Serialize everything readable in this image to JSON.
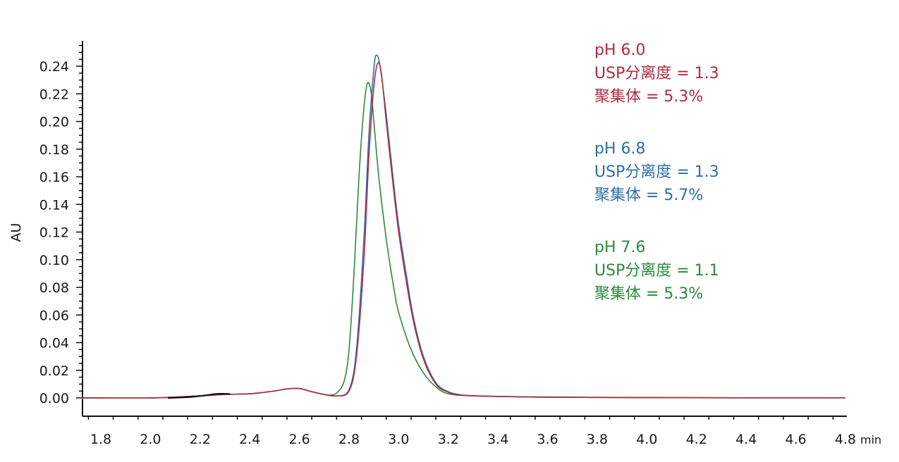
{
  "colors": {
    "ph60": "#b22a3e",
    "ph68": "#2e6fa3",
    "ph76": "#2d8a3e",
    "base": "#111111",
    "axis": "#111111"
  },
  "chart_data": {
    "type": "line",
    "ylabel": "AU",
    "xunit": "min",
    "xlim": [
      1.72,
      4.8
    ],
    "ylim": [
      -0.012,
      0.26
    ],
    "xticks": [
      "1.8",
      "2.0",
      "2.2",
      "2.4",
      "2.6",
      "2.8",
      "3.0",
      "3.2",
      "3.4",
      "3.6",
      "3.8",
      "4.0",
      "4.2",
      "4.4",
      "4.6",
      "4.8"
    ],
    "yticks": [
      "0.00",
      "0.02",
      "0.04",
      "0.06",
      "0.08",
      "0.10",
      "0.12",
      "0.14",
      "0.16",
      "0.18",
      "0.20",
      "0.22",
      "0.24"
    ],
    "grid": false,
    "series": [
      {
        "key": "ph60",
        "x": [
          1.72,
          2.0,
          2.2,
          2.3,
          2.4,
          2.5,
          2.55,
          2.6,
          2.65,
          2.7,
          2.75,
          2.8,
          2.83,
          2.86,
          2.88,
          2.9,
          2.915,
          2.93,
          2.95,
          2.98,
          3.0,
          3.03,
          3.06,
          3.1,
          3.15,
          3.2,
          3.25,
          3.3,
          3.4,
          3.6,
          4.0,
          4.4,
          4.8
        ],
        "y": [
          0.0,
          0.0,
          0.0015,
          0.0025,
          0.003,
          0.005,
          0.0065,
          0.0068,
          0.0045,
          0.0025,
          0.0015,
          0.005,
          0.03,
          0.1,
          0.175,
          0.225,
          0.242,
          0.235,
          0.2,
          0.15,
          0.12,
          0.085,
          0.055,
          0.028,
          0.01,
          0.004,
          0.002,
          0.0015,
          0.001,
          0.0005,
          0.0002,
          0.0001,
          0.0001
        ]
      },
      {
        "key": "ph68",
        "x": [
          1.72,
          2.0,
          2.2,
          2.3,
          2.4,
          2.5,
          2.55,
          2.6,
          2.65,
          2.7,
          2.75,
          2.8,
          2.83,
          2.86,
          2.88,
          2.9,
          2.91,
          2.925,
          2.95,
          2.98,
          3.0,
          3.03,
          3.06,
          3.1,
          3.15,
          3.2,
          3.25,
          3.3,
          3.4,
          3.6,
          4.0,
          4.4,
          4.8
        ],
        "y": [
          0.0,
          0.0,
          0.0015,
          0.0025,
          0.003,
          0.005,
          0.0065,
          0.0068,
          0.0045,
          0.0025,
          0.0015,
          0.006,
          0.035,
          0.115,
          0.19,
          0.238,
          0.248,
          0.24,
          0.205,
          0.155,
          0.125,
          0.09,
          0.058,
          0.03,
          0.011,
          0.0045,
          0.0022,
          0.0016,
          0.0011,
          0.0005,
          0.0002,
          0.0001,
          0.0001
        ]
      },
      {
        "key": "ph76",
        "x": [
          1.72,
          2.0,
          2.2,
          2.3,
          2.4,
          2.5,
          2.55,
          2.6,
          2.65,
          2.7,
          2.72,
          2.75,
          2.78,
          2.8,
          2.82,
          2.84,
          2.86,
          2.875,
          2.89,
          2.9,
          2.92,
          2.95,
          2.98,
          3.0,
          3.05,
          3.1,
          3.15,
          3.2,
          3.3,
          3.5,
          4.0,
          4.4,
          4.8
        ],
        "y": [
          0.0,
          0.0,
          0.0015,
          0.0025,
          0.003,
          0.005,
          0.0065,
          0.0068,
          0.0045,
          0.0025,
          0.002,
          0.0035,
          0.012,
          0.035,
          0.09,
          0.16,
          0.21,
          0.228,
          0.22,
          0.2,
          0.16,
          0.115,
          0.08,
          0.062,
          0.035,
          0.018,
          0.008,
          0.003,
          0.0015,
          0.0008,
          0.0003,
          0.0001,
          0.0001
        ]
      },
      {
        "key": "base",
        "x": [
          2.07,
          2.12,
          2.17,
          2.22,
          2.26,
          2.29,
          2.32
        ],
        "y": [
          0.0,
          0.0003,
          0.0008,
          0.0018,
          0.0028,
          0.003,
          0.0028
        ]
      }
    ]
  },
  "annotations": [
    {
      "key": "ph60",
      "lines": [
        "pH 6.0",
        "USP分离度 = 1.3",
        "聚集体 = 5.3%"
      ]
    },
    {
      "key": "ph68",
      "lines": [
        "pH 6.8",
        "USP分离度 = 1.3",
        "聚集体 = 5.7%"
      ]
    },
    {
      "key": "ph76",
      "lines": [
        "pH 7.6",
        "USP分离度 = 1.1",
        "聚集体 = 5.3%"
      ]
    }
  ]
}
